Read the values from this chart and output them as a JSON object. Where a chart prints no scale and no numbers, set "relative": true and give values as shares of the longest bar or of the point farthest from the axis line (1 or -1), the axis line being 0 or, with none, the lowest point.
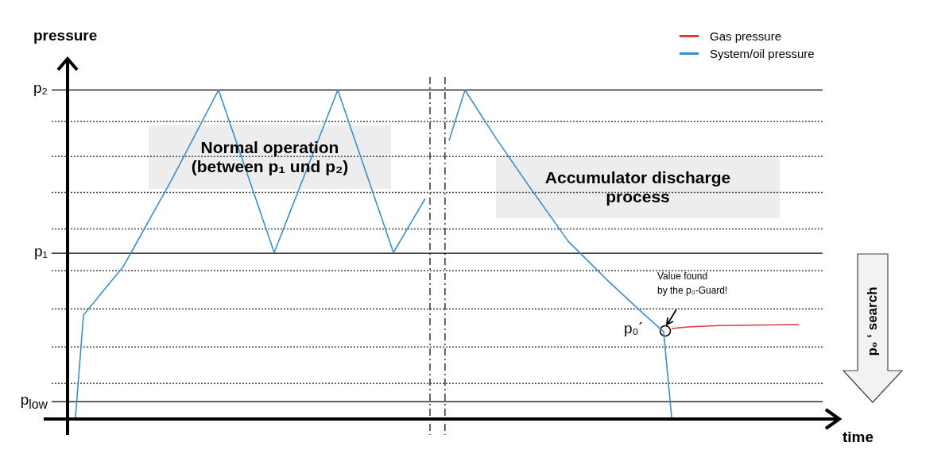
{
  "chart_data": {
    "type": "line",
    "relative": true,
    "xlabel": "time",
    "ylabel": "pressure",
    "legend": "top right",
    "categories": [
      null,
      null,
      null,
      null,
      null,
      null,
      null,
      null,
      null,
      null,
      null,
      null,
      null,
      null,
      null,
      null,
      null,
      null,
      null,
      null,
      null,
      null,
      null,
      null,
      null,
      null,
      null,
      null,
      null,
      null,
      null,
      null,
      null,
      null,
      null,
      null,
      null,
      null,
      null,
      null,
      null,
      null,
      null,
      null,
      null,
      null,
      null,
      null,
      null,
      null,
      null,
      null,
      null,
      null,
      null,
      null,
      null,
      null,
      null,
      null,
      null,
      null,
      null,
      null,
      null,
      null,
      null,
      null,
      null,
      null,
      null,
      null,
      null,
      null,
      null,
      null,
      null,
      null,
      null,
      null,
      null,
      null,
      null,
      null,
      null,
      null,
      null,
      null,
      null,
      null,
      null,
      null,
      null,
      null,
      null,
      null,
      null,
      null
    ],
    "series": [
      {
        "name": "Gas pressure",
        "color": "#e03a3a",
        "values": [
          null,
          null,
          null,
          null,
          null,
          null,
          null,
          null,
          null,
          null,
          null,
          null,
          null,
          null,
          null,
          null,
          null,
          null,
          null,
          null,
          null,
          null,
          null,
          null,
          null,
          null,
          null,
          null,
          null,
          null,
          null,
          null,
          null,
          null,
          null,
          null,
          null,
          null,
          null,
          null,
          null,
          null,
          null,
          null,
          null,
          null,
          null,
          null,
          null,
          null,
          null,
          null,
          null,
          null,
          null,
          null,
          null,
          null,
          null,
          null,
          null,
          null,
          null,
          null,
          null,
          null,
          null,
          null,
          null,
          null,
          null,
          null,
          null,
          null,
          null,
          null,
          0.275,
          null,
          0.28,
          null,
          null,
          null,
          0.284,
          null,
          null,
          null,
          null,
          null,
          null,
          null,
          null,
          null,
          0.287,
          null,
          null,
          null,
          null,
          null
        ]
      },
      {
        "name": "System/oil pressure",
        "color": "#3a8fd0",
        "values": [
          null,
          0.005,
          0.316,
          null,
          null,
          null,
          null,
          0.463,
          0.506,
          null,
          null,
          null,
          null,
          0.723,
          null,
          null,
          null,
          null,
          null,
          1,
          null,
          null,
          null,
          null,
          null,
          null,
          0.506,
          null,
          null,
          null,
          null,
          null,
          null,
          null,
          1,
          null,
          null,
          null,
          null,
          null,
          null,
          0.506,
          null,
          null,
          null,
          0.67,
          null,
          null,
          null,
          null,
          null,
          null,
          null,
          null,
          null,
          null,
          null,
          null,
          null,
          null,
          null,
          null,
          null,
          null,
          null,
          null,
          null,
          null,
          null,
          null,
          null,
          null,
          null,
          null,
          null,
          null,
          null,
          null,
          null,
          null,
          null,
          null,
          null,
          null,
          null,
          null,
          null,
          null,
          null,
          null,
          null,
          null,
          null,
          null,
          null,
          null,
          null,
          null
        ]
      },
      {
        "color": "#3a8fd0",
        "values": [
          null,
          null,
          null,
          null,
          null,
          null,
          null,
          null,
          null,
          null,
          null,
          null,
          null,
          null,
          null,
          null,
          null,
          null,
          null,
          null,
          null,
          null,
          null,
          null,
          null,
          null,
          null,
          null,
          null,
          null,
          null,
          null,
          null,
          null,
          null,
          null,
          null,
          null,
          null,
          null,
          null,
          null,
          null,
          null,
          null,
          null,
          null,
          null,
          0.846,
          null,
          1,
          null,
          null,
          null,
          0.85,
          null,
          null,
          null,
          0.71,
          null,
          null,
          null,
          null,
          0.54,
          null,
          null,
          null,
          null,
          0.42,
          null,
          null,
          null,
          0.33,
          null,
          null,
          0.265,
          0.005,
          null,
          null,
          null,
          null,
          null,
          null,
          null,
          null,
          null,
          null,
          null,
          null,
          null,
          null,
          null,
          null,
          null,
          null,
          null,
          null,
          null
        ]
      }
    ],
    "ref_lines": [
      {
        "axis": "y",
        "value": 0.053,
        "label": "p$_{low}$",
        "color": "#000000",
        "line_style": "solid"
      },
      {
        "axis": "y",
        "value": 0.504,
        "label": "p₁",
        "color": "#000000",
        "line_style": "solid"
      },
      {
        "axis": "y",
        "value": 1,
        "label": "p₂",
        "color": "#000000",
        "line_style": "solid"
      },
      {
        "axis": "y",
        "value": 0.904,
        "color": "#444444",
        "line_style": "dotted"
      },
      {
        "axis": "y",
        "value": 0.798,
        "color": "#444444",
        "line_style": "dotted"
      },
      {
        "axis": "y",
        "value": 0.689,
        "color": "#444444",
        "line_style": "dotted"
      },
      {
        "axis": "y",
        "value": 0.578,
        "color": "#444444",
        "line_style": "dotted"
      },
      {
        "axis": "y",
        "value": 0.451,
        "color": "#444444",
        "line_style": "dotted"
      },
      {
        "axis": "y",
        "value": 0.335,
        "color": "#444444",
        "line_style": "dotted"
      },
      {
        "axis": "y",
        "value": 0.219,
        "color": "#444444",
        "line_style": "dotted"
      },
      {
        "axis": "y",
        "value": 0.108,
        "color": "#444444",
        "line_style": "dotted"
      }
    ],
    "annotations": [
      "Normal operation\n(between p₁ und p₂)",
      "Accumulator discharge\nprocess",
      "p₀´",
      "Value found\nby the p₀-Guard!",
      "p₀ ‘ search"
    ]
  }
}
